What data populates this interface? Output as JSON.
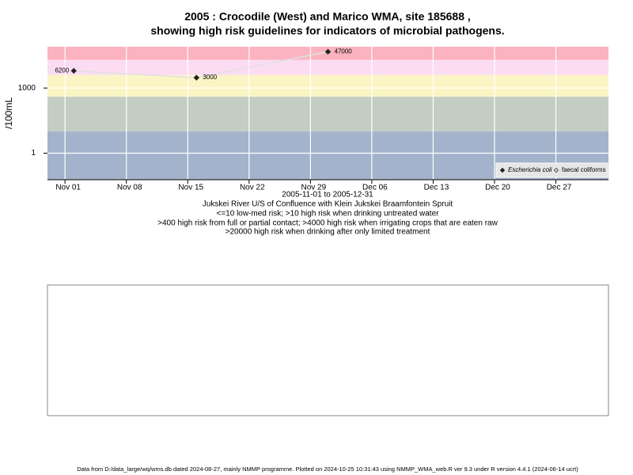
{
  "chart_data": {
    "type": "line",
    "title": [
      "2005 : Crocodile (West) and Marico WMA, site 185688 ,",
      "showing high risk guidelines for indicators of microbial pathogens."
    ],
    "ylabel": "/100mL",
    "xlabel": "2005-11-01 to 2005-12-31",
    "notes": [
      "Jukskei River U/S of Confluence with Klein Jukskei Braamfontein Spruit",
      "<=10 low-med risk; >10 high risk when drinking untreated water",
      ">400 high risk from full or partial contact; >4000 high risk when irrigating crops that are eaten raw",
      ">20000 high risk when drinking after only limited treatment"
    ],
    "x": [
      "2005-11-02",
      "2005-11-16",
      "2005-12-01"
    ],
    "series": [
      {
        "name": "Escherichia coli",
        "color": "#222222",
        "line_color": "#e0e0e0",
        "values": [
          6200,
          3000,
          47000
        ]
      },
      {
        "name": "faecal coliforms",
        "color": "#555555",
        "values": [
          null,
          null,
          null
        ]
      }
    ],
    "xlim": [
      "2005-10-30",
      "2006-01-02"
    ],
    "xticks": [
      {
        "value": "2005-11-01",
        "label": "Nov 01"
      },
      {
        "value": "2005-11-08",
        "label": "Nov 08"
      },
      {
        "value": "2005-11-15",
        "label": "Nov 15"
      },
      {
        "value": "2005-11-22",
        "label": "Nov 22"
      },
      {
        "value": "2005-11-29",
        "label": "Nov 29"
      },
      {
        "value": "2005-12-06",
        "label": "Dec 06"
      },
      {
        "value": "2005-12-13",
        "label": "Dec 13"
      },
      {
        "value": "2005-12-20",
        "label": "Dec 20"
      },
      {
        "value": "2005-12-27",
        "label": "Dec 27"
      }
    ],
    "ylim": [
      0.06,
      80000
    ],
    "yticks": [
      1,
      1000
    ],
    "ylog": true,
    "grid": true,
    "legend": "bottom-right",
    "bands": [
      {
        "from": 0.06,
        "to": 10,
        "color": "#a2b3cb"
      },
      {
        "from": 10,
        "to": 400,
        "color": "#c3cdc3"
      },
      {
        "from": 400,
        "to": 4000,
        "color": "#fbf5c6"
      },
      {
        "from": 4000,
        "to": 20000,
        "color": "#fcdcf2"
      },
      {
        "from": 20000,
        "to": 80000,
        "color": "#fbb3c0"
      }
    ]
  },
  "footer": "Data from D:/data_large/wq/wms.db dated 2024-08-27, mainly NMMP programme. Plotted on 2024-10-25 10:31:43 using NMMP_WMA_web.R ver 9.3 under R version 4.4.1 (2024-06-14 ucrt)"
}
